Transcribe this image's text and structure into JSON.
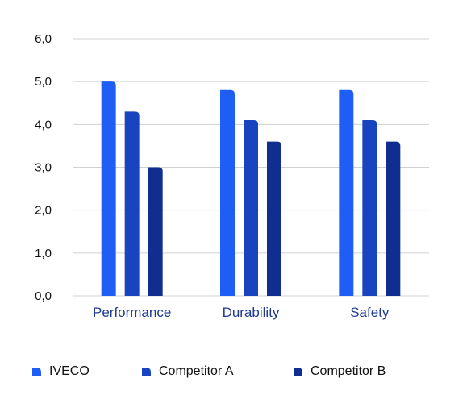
{
  "chart_data": {
    "type": "bar",
    "categories": [
      "Performance",
      "Durability",
      "Safety"
    ],
    "series": [
      {
        "name": "IVECO",
        "values": [
          5.0,
          4.8,
          4.8
        ],
        "color": "#1f5ef5"
      },
      {
        "name": "Competitor A",
        "values": [
          4.3,
          4.1,
          4.1
        ],
        "color": "#1845bf"
      },
      {
        "name": "Competitor B",
        "values": [
          3.0,
          3.6,
          3.6
        ],
        "color": "#0f2e8f"
      }
    ],
    "ylim": [
      0,
      6
    ],
    "yticks": [
      "0,0",
      "1,0",
      "2,0",
      "3,0",
      "4,0",
      "5,0",
      "6,0"
    ],
    "grid": true,
    "legend_position": "bottom",
    "category_label_color": "#1f3a93",
    "grid_color": "#d0d0d0"
  }
}
